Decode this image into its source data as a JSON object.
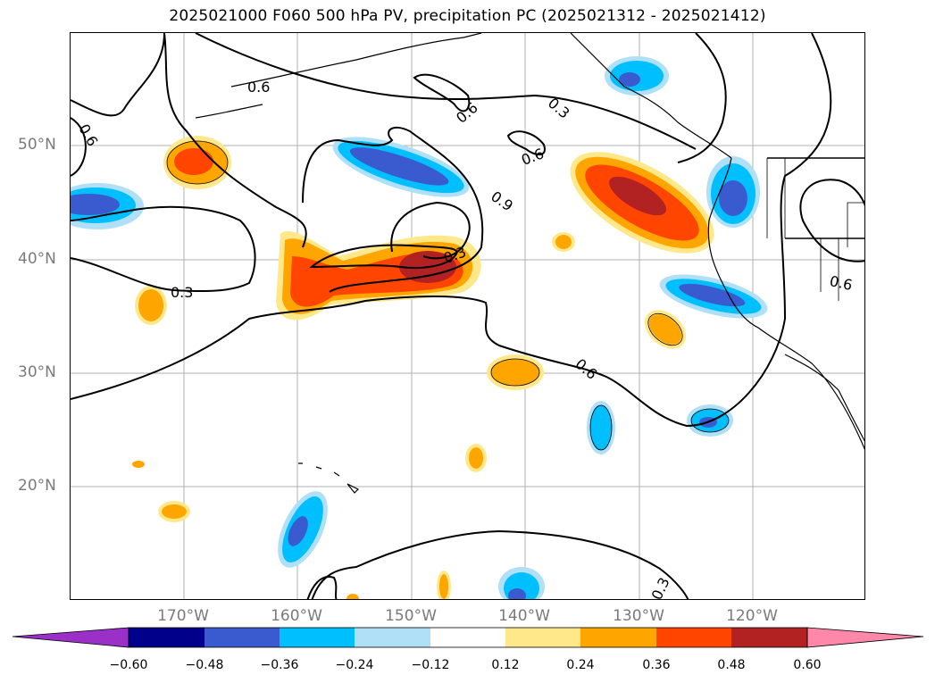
{
  "title": "2025021000 F060 500 hPa PV, precipitation PC (2025021312 - 2025021412)",
  "lat_labels": [
    "50°N",
    "40°N",
    "30°N",
    "20°N"
  ],
  "lon_labels": [
    "170°W",
    "160°W",
    "150°W",
    "140°W",
    "130°W",
    "120°W"
  ],
  "colorbar": {
    "ticks": [
      "−0.60",
      "−0.48",
      "−0.36",
      "−0.24",
      "−0.12",
      "0.12",
      "0.24",
      "0.36",
      "0.48",
      "0.60"
    ],
    "colors": [
      "#9b30c8",
      "#00008b",
      "#3a5bd0",
      "#00bfff",
      "#afe0f8",
      "#ffffff",
      "#ffe88a",
      "#ffa500",
      "#ff4500",
      "#b22222",
      "#ff88aa"
    ]
  },
  "contour_labels": [
    "0.6",
    "0.6",
    "0.3",
    "0.6",
    "0.6",
    "0.9",
    "0.3",
    "0.3",
    "0.6",
    "0.6",
    "0.3"
  ],
  "colors": {
    "grid": "#b0b0b0",
    "coast": "#000000",
    "contour": "#000000"
  }
}
